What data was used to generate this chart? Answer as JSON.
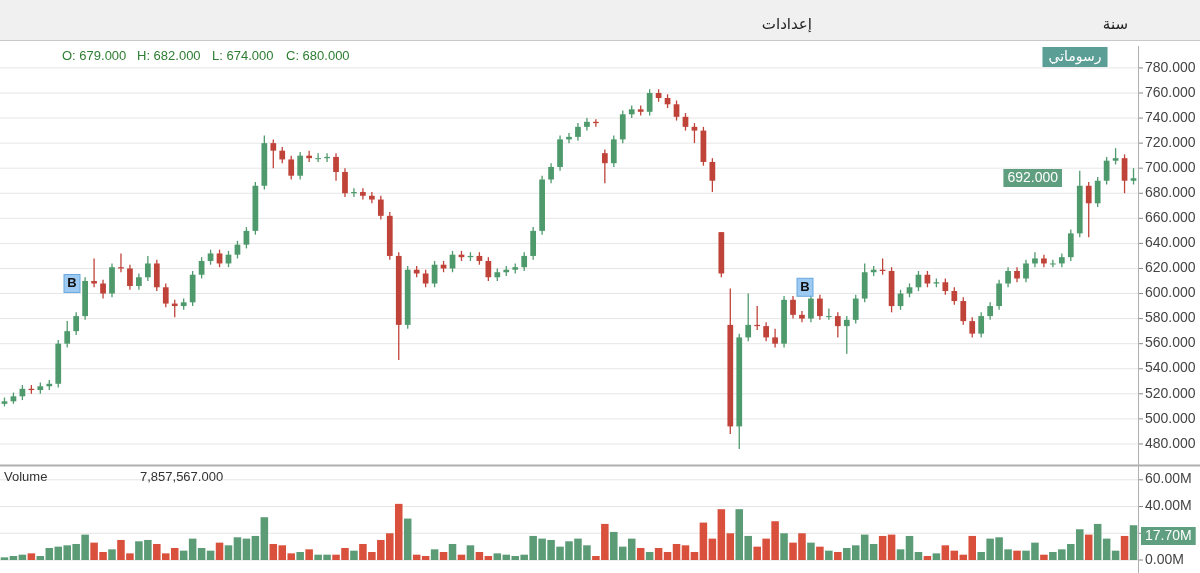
{
  "chart_data": [
    {
      "type": "candlestick",
      "categories": [
        null,
        null,
        null,
        null,
        null,
        null,
        null,
        null,
        null,
        null,
        null,
        null,
        null,
        null,
        null,
        null,
        null,
        null,
        null,
        null,
        null,
        null,
        null,
        null,
        null,
        null,
        null,
        null,
        null,
        null,
        null,
        null,
        null,
        null,
        null,
        null,
        null,
        null,
        null,
        null,
        null,
        null,
        null,
        null,
        null,
        null,
        null,
        null,
        null,
        null,
        null,
        null,
        null,
        null,
        null,
        null,
        null,
        null,
        null,
        null,
        null,
        null,
        null,
        null,
        null,
        null,
        null,
        null,
        null,
        null,
        null,
        null,
        null,
        null,
        null,
        null,
        null,
        null,
        null,
        null,
        null,
        null,
        null,
        null,
        null,
        null,
        null,
        null,
        null,
        null,
        null,
        null,
        null,
        null,
        null,
        null,
        null,
        null,
        null,
        null,
        null,
        null,
        null,
        null,
        null,
        null,
        null,
        null,
        null,
        null,
        null,
        null,
        null,
        null,
        null,
        null,
        null,
        null,
        null,
        null,
        null,
        null,
        null,
        null,
        null,
        null,
        null
      ],
      "ohlc": [
        [
          512,
          517,
          510,
          514
        ],
        [
          514,
          521,
          512,
          518
        ],
        [
          518,
          527,
          515,
          524
        ],
        [
          524,
          527,
          520,
          523
        ],
        [
          523,
          529,
          520,
          526
        ],
        [
          526,
          531,
          523,
          528
        ],
        [
          528,
          563,
          525,
          560
        ],
        [
          560,
          578,
          557,
          570
        ],
        [
          570,
          585,
          567,
          582
        ],
        [
          582,
          613,
          579,
          610
        ],
        [
          610,
          628,
          605,
          608
        ],
        [
          608,
          611,
          596,
          600
        ],
        [
          600,
          624,
          597,
          621
        ],
        [
          621,
          632,
          617,
          620
        ],
        [
          620,
          623,
          603,
          606
        ],
        [
          606,
          616,
          603,
          613
        ],
        [
          613,
          630,
          610,
          624
        ],
        [
          624,
          627,
          602,
          605
        ],
        [
          605,
          608,
          589,
          592
        ],
        [
          592,
          595,
          581,
          590
        ],
        [
          590,
          596,
          587,
          593
        ],
        [
          593,
          618,
          590,
          615
        ],
        [
          615,
          629,
          612,
          626
        ],
        [
          626,
          635,
          623,
          632
        ],
        [
          632,
          635,
          621,
          624
        ],
        [
          624,
          634,
          621,
          631
        ],
        [
          631,
          642,
          628,
          639
        ],
        [
          639,
          653,
          636,
          650
        ],
        [
          650,
          689,
          647,
          686
        ],
        [
          686,
          726,
          683,
          720
        ],
        [
          720,
          723,
          700,
          714
        ],
        [
          714,
          717,
          704,
          707
        ],
        [
          707,
          710,
          691,
          694
        ],
        [
          694,
          713,
          691,
          710
        ],
        [
          710,
          714,
          705,
          708
        ],
        [
          708,
          712,
          705,
          708
        ],
        [
          708,
          712,
          705,
          709
        ],
        [
          709,
          712,
          690,
          697
        ],
        [
          697,
          700,
          677,
          680
        ],
        [
          680,
          684,
          677,
          681
        ],
        [
          681,
          684,
          675,
          678
        ],
        [
          678,
          681,
          672,
          675
        ],
        [
          675,
          678,
          659,
          662
        ],
        [
          662,
          665,
          627,
          630
        ],
        [
          630,
          633,
          547,
          575
        ],
        [
          575,
          622,
          572,
          619
        ],
        [
          619,
          622,
          613,
          616
        ],
        [
          616,
          619,
          605,
          608
        ],
        [
          608,
          626,
          605,
          623
        ],
        [
          623,
          626,
          617,
          620
        ],
        [
          620,
          634,
          617,
          631
        ],
        [
          631,
          634,
          626,
          629
        ],
        [
          629,
          633,
          626,
          630
        ],
        [
          630,
          633,
          623,
          626
        ],
        [
          626,
          629,
          610,
          613
        ],
        [
          613,
          620,
          610,
          617
        ],
        [
          617,
          622,
          614,
          619
        ],
        [
          619,
          624,
          616,
          621
        ],
        [
          621,
          633,
          618,
          630
        ],
        [
          630,
          653,
          627,
          650
        ],
        [
          650,
          694,
          647,
          691
        ],
        [
          691,
          704,
          688,
          701
        ],
        [
          701,
          726,
          698,
          723
        ],
        [
          723,
          728,
          720,
          725
        ],
        [
          725,
          736,
          722,
          733
        ],
        [
          733,
          740,
          730,
          737
        ],
        [
          737,
          739,
          733,
          736
        ],
        [
          712,
          715,
          688,
          704
        ],
        [
          704,
          726,
          701,
          723
        ],
        [
          723,
          746,
          720,
          743
        ],
        [
          743,
          750,
          740,
          747
        ],
        [
          747,
          750,
          742,
          745
        ],
        [
          745,
          763,
          742,
          760
        ],
        [
          760,
          763,
          753,
          756
        ],
        [
          756,
          759,
          748,
          751
        ],
        [
          751,
          754,
          738,
          741
        ],
        [
          741,
          744,
          730,
          733
        ],
        [
          733,
          736,
          720,
          730
        ],
        [
          730,
          733,
          702,
          705
        ],
        [
          705,
          708,
          681,
          690
        ],
        [
          649,
          649,
          613,
          616
        ],
        [
          575,
          604,
          488,
          494
        ],
        [
          494,
          568,
          476,
          565
        ],
        [
          565,
          600,
          562,
          575
        ],
        [
          575,
          590,
          571,
          574
        ],
        [
          574,
          577,
          562,
          565
        ],
        [
          565,
          572,
          557,
          560
        ],
        [
          560,
          598,
          557,
          595
        ],
        [
          595,
          598,
          580,
          583
        ],
        [
          583,
          586,
          577,
          580
        ],
        [
          580,
          599,
          577,
          596
        ],
        [
          596,
          599,
          579,
          582
        ],
        [
          582,
          588,
          579,
          582
        ],
        [
          582,
          585,
          565,
          574
        ],
        [
          574,
          582,
          552,
          579
        ],
        [
          579,
          599,
          576,
          596
        ],
        [
          596,
          624,
          593,
          617
        ],
        [
          617,
          622,
          614,
          619
        ],
        [
          619,
          628,
          615,
          618
        ],
        [
          618,
          621,
          585,
          590
        ],
        [
          590,
          603,
          587,
          600
        ],
        [
          600,
          608,
          597,
          605
        ],
        [
          605,
          618,
          602,
          615
        ],
        [
          615,
          618,
          605,
          608
        ],
        [
          608,
          612,
          605,
          609
        ],
        [
          609,
          612,
          599,
          602
        ],
        [
          602,
          605,
          591,
          594
        ],
        [
          594,
          597,
          575,
          578
        ],
        [
          578,
          581,
          565,
          568
        ],
        [
          568,
          585,
          565,
          582
        ],
        [
          582,
          593,
          579,
          590
        ],
        [
          590,
          611,
          587,
          608
        ],
        [
          608,
          621,
          605,
          618
        ],
        [
          618,
          621,
          609,
          612
        ],
        [
          612,
          627,
          609,
          624
        ],
        [
          624,
          633,
          621,
          628
        ],
        [
          628,
          631,
          621,
          624
        ],
        [
          624,
          627,
          621,
          624
        ],
        [
          624,
          632,
          621,
          629
        ],
        [
          629,
          651,
          626,
          648
        ],
        [
          648,
          698,
          645,
          686
        ],
        [
          686,
          689,
          645,
          672
        ],
        [
          672,
          693,
          669,
          690
        ],
        [
          690,
          709,
          687,
          706
        ],
        [
          706,
          716,
          703,
          708
        ],
        [
          708,
          711,
          680,
          690
        ],
        [
          690,
          700,
          687,
          692
        ]
      ],
      "ylim": [
        463.2,
        797.5
      ],
      "yticks": [
        {
          "value": 480,
          "label": "480.000"
        },
        {
          "value": 500,
          "label": "500.000"
        },
        {
          "value": 520,
          "label": "520.000"
        },
        {
          "value": 540,
          "label": "540.000"
        },
        {
          "value": 560,
          "label": "560.000"
        },
        {
          "value": 580,
          "label": "580.000"
        },
        {
          "value": 600,
          "label": "600.000"
        },
        {
          "value": 620,
          "label": "620.000"
        },
        {
          "value": 640,
          "label": "640.000"
        },
        {
          "value": 660,
          "label": "660.000"
        },
        {
          "value": 680,
          "label": "680.000"
        },
        {
          "value": 700,
          "label": "700.000"
        },
        {
          "value": 720,
          "label": "720.000"
        },
        {
          "value": 740,
          "label": "740.000"
        },
        {
          "value": 760,
          "label": "760.000"
        },
        {
          "value": 780,
          "label": "780.000"
        }
      ],
      "grid": "y",
      "annotations": [
        "إعدادات",
        "سنة",
        "رسوماتي",
        "O: 679.000",
        "H: 682.000",
        "L: 674.000",
        "C: 680.000",
        {
          "text": "B",
          "y": 608
        },
        {
          "text": "B",
          "y": 605
        },
        "692.000"
      ]
    },
    {
      "type": "bar",
      "categories": [
        null,
        null,
        null,
        null,
        null,
        null,
        null,
        null,
        null,
        null,
        null,
        null,
        null,
        null,
        null,
        null,
        null,
        null,
        null,
        null,
        null,
        null,
        null,
        null,
        null,
        null,
        null,
        null,
        null,
        null,
        null,
        null,
        null,
        null,
        null,
        null,
        null,
        null,
        null,
        null,
        null,
        null,
        null,
        null,
        null,
        null,
        null,
        null,
        null,
        null,
        null,
        null,
        null,
        null,
        null,
        null,
        null,
        null,
        null,
        null,
        null,
        null,
        null,
        null,
        null,
        null,
        null,
        null,
        null,
        null,
        null,
        null,
        null,
        null,
        null,
        null,
        null,
        null,
        null,
        null,
        null,
        null,
        null,
        null,
        null,
        null,
        null,
        null,
        null,
        null,
        null,
        null,
        null,
        null,
        null,
        null,
        null,
        null,
        null,
        null,
        null,
        null,
        null,
        null,
        null,
        null,
        null,
        null,
        null,
        null,
        null,
        null,
        null,
        null,
        null,
        null,
        null,
        null,
        null,
        null,
        null,
        null,
        null,
        null,
        null,
        null,
        null
      ],
      "values": [
        2,
        3,
        4,
        5,
        3,
        9,
        10,
        11,
        12,
        19,
        13,
        6,
        8,
        15,
        5,
        14,
        15,
        12,
        5,
        9,
        7,
        16,
        9,
        7,
        13,
        11,
        17,
        16,
        18,
        32,
        12,
        11,
        5,
        6,
        8,
        4,
        4,
        4,
        9,
        7,
        12,
        6,
        15,
        20,
        42,
        31,
        4,
        3,
        8,
        6,
        12,
        4,
        11,
        6,
        3,
        5,
        4,
        3,
        4,
        18,
        16,
        15,
        10,
        14,
        16,
        11,
        3,
        27,
        21,
        10,
        16,
        9,
        6,
        9,
        6,
        12,
        11,
        6,
        28,
        16,
        38,
        20,
        38,
        18,
        10,
        16,
        29,
        20,
        13,
        20,
        13,
        10,
        7,
        6,
        9,
        11,
        19,
        12,
        18,
        19,
        8,
        18,
        6,
        3,
        5,
        11,
        7,
        4,
        18,
        6,
        16,
        17,
        8,
        7,
        7,
        13,
        4,
        6,
        8,
        12,
        23,
        19,
        27,
        16,
        7,
        18,
        26
      ],
      "colors": [
        "#5b9c76",
        "#5b9c76",
        "#5b9c76",
        "#d9503c",
        "#5b9c76",
        "#5b9c76",
        "#5b9c76",
        "#5b9c76",
        "#5b9c76",
        "#5b9c76",
        "#d9503c",
        "#d9503c",
        "#5b9c76",
        "#d9503c",
        "#d9503c",
        "#5b9c76",
        "#5b9c76",
        "#d9503c",
        "#d9503c",
        "#d9503c",
        "#5b9c76",
        "#5b9c76",
        "#5b9c76",
        "#5b9c76",
        "#d9503c",
        "#5b9c76",
        "#5b9c76",
        "#5b9c76",
        "#5b9c76",
        "#5b9c76",
        "#d9503c",
        "#d9503c",
        "#d9503c",
        "#5b9c76",
        "#d9503c",
        "#5b9c76",
        "#5b9c76",
        "#d9503c",
        "#d9503c",
        "#5b9c76",
        "#d9503c",
        "#d9503c",
        "#d9503c",
        "#d9503c",
        "#d9503c",
        "#5b9c76",
        "#d9503c",
        "#d9503c",
        "#5b9c76",
        "#d9503c",
        "#5b9c76",
        "#d9503c",
        "#5b9c76",
        "#d9503c",
        "#d9503c",
        "#5b9c76",
        "#5b9c76",
        "#5b9c76",
        "#5b9c76",
        "#5b9c76",
        "#5b9c76",
        "#5b9c76",
        "#5b9c76",
        "#5b9c76",
        "#5b9c76",
        "#5b9c76",
        "#d9503c",
        "#d9503c",
        "#5b9c76",
        "#5b9c76",
        "#5b9c76",
        "#d9503c",
        "#5b9c76",
        "#d9503c",
        "#d9503c",
        "#d9503c",
        "#d9503c",
        "#d9503c",
        "#d9503c",
        "#d9503c",
        "#d9503c",
        "#d9503c",
        "#5b9c76",
        "#5b9c76",
        "#d9503c",
        "#d9503c",
        "#d9503c",
        "#5b9c76",
        "#d9503c",
        "#d9503c",
        "#5b9c76",
        "#d9503c",
        "#5b9c76",
        "#d9503c",
        "#5b9c76",
        "#5b9c76",
        "#5b9c76",
        "#5b9c76",
        "#d9503c",
        "#d9503c",
        "#5b9c76",
        "#5b9c76",
        "#5b9c76",
        "#d9503c",
        "#5b9c76",
        "#d9503c",
        "#d9503c",
        "#d9503c",
        "#d9503c",
        "#5b9c76",
        "#5b9c76",
        "#5b9c76",
        "#5b9c76",
        "#d9503c",
        "#5b9c76",
        "#5b9c76",
        "#d9503c",
        "#5b9c76",
        "#5b9c76",
        "#5b9c76",
        "#5b9c76",
        "#d9503c",
        "#5b9c76",
        "#5b9c76",
        "#5b9c76",
        "#d9503c",
        "#5b9c76"
      ],
      "ylim": [
        -9.7,
        70.3
      ],
      "yticks": [
        {
          "value": 0,
          "label": "0.00M"
        },
        {
          "value": 20,
          "label": null
        },
        {
          "value": 40,
          "label": "40.00M"
        },
        {
          "value": 60,
          "label": "60.00M"
        }
      ],
      "grid": "y",
      "annotations": [
        "Volume",
        "7,857,567.000",
        "17.70M"
      ]
    }
  ]
}
